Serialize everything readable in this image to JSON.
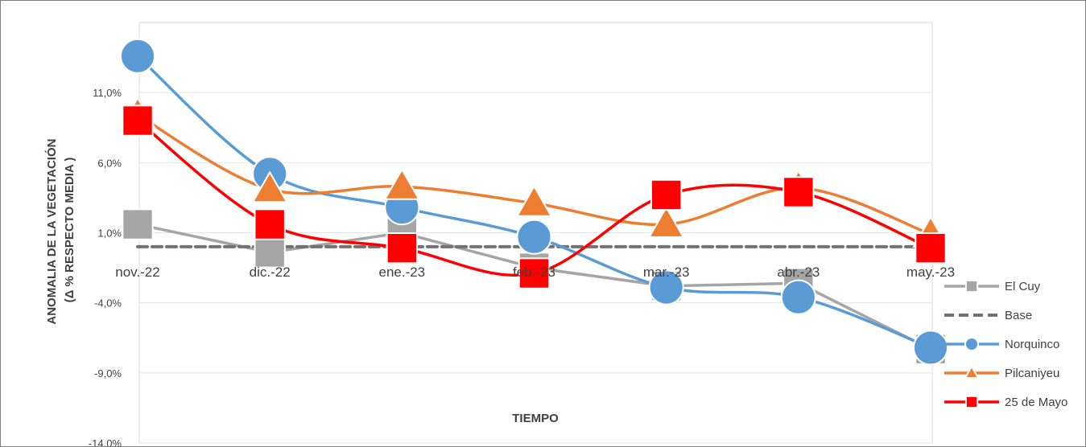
{
  "chart_data": {
    "type": "line",
    "title": "",
    "ylabel_line1": "ANOMALIA DE LA VEGETACIÓN",
    "ylabel_line2": "(Δ % RESPECTO MEDIA )",
    "xlabel": "TIEMPO",
    "categories": [
      "nov.-22",
      "dic.-22",
      "ene.-23",
      "feb.-23",
      "mar.-23",
      "abr.-23",
      "may.-23"
    ],
    "ylim": [
      -14,
      16
    ],
    "ytick_values": [
      -14,
      -9,
      -4,
      1,
      6,
      11
    ],
    "ytick_labels": [
      "-14,0%",
      "-9,0%",
      "-4,0%",
      "1,0%",
      "6,0%",
      "11,0%"
    ],
    "x_axis_crosses_at": 0,
    "legend_position": "right",
    "series": [
      {
        "name": "El Cuy",
        "color": "#a5a5a5",
        "marker": "square",
        "dash": false,
        "smooth": false,
        "values": [
          1.6,
          -0.4,
          1.0,
          -1.5,
          -2.8,
          -2.6,
          -7.3
        ]
      },
      {
        "name": "Base",
        "color": "#767171",
        "marker": "none",
        "dash": true,
        "smooth": false,
        "values": [
          0,
          0,
          0,
          0,
          0,
          0,
          0
        ]
      },
      {
        "name": "Norquinco",
        "color": "#5b9bd5",
        "marker": "circle",
        "dash": false,
        "smooth": true,
        "values": [
          13.6,
          5.2,
          2.8,
          0.7,
          -2.9,
          -3.6,
          -7.2
        ]
      },
      {
        "name": "Pilcaniyeu",
        "color": "#ed7d31",
        "marker": "triangle",
        "dash": false,
        "smooth": true,
        "values": [
          9.4,
          4.1,
          4.3,
          3.1,
          1.6,
          4.2,
          0.9
        ]
      },
      {
        "name": "25 de Mayo",
        "color": "#ff0000",
        "marker": "square",
        "dash": false,
        "smooth": true,
        "values": [
          9.0,
          1.6,
          -0.1,
          -1.9,
          3.7,
          3.9,
          -0.1
        ]
      }
    ]
  }
}
